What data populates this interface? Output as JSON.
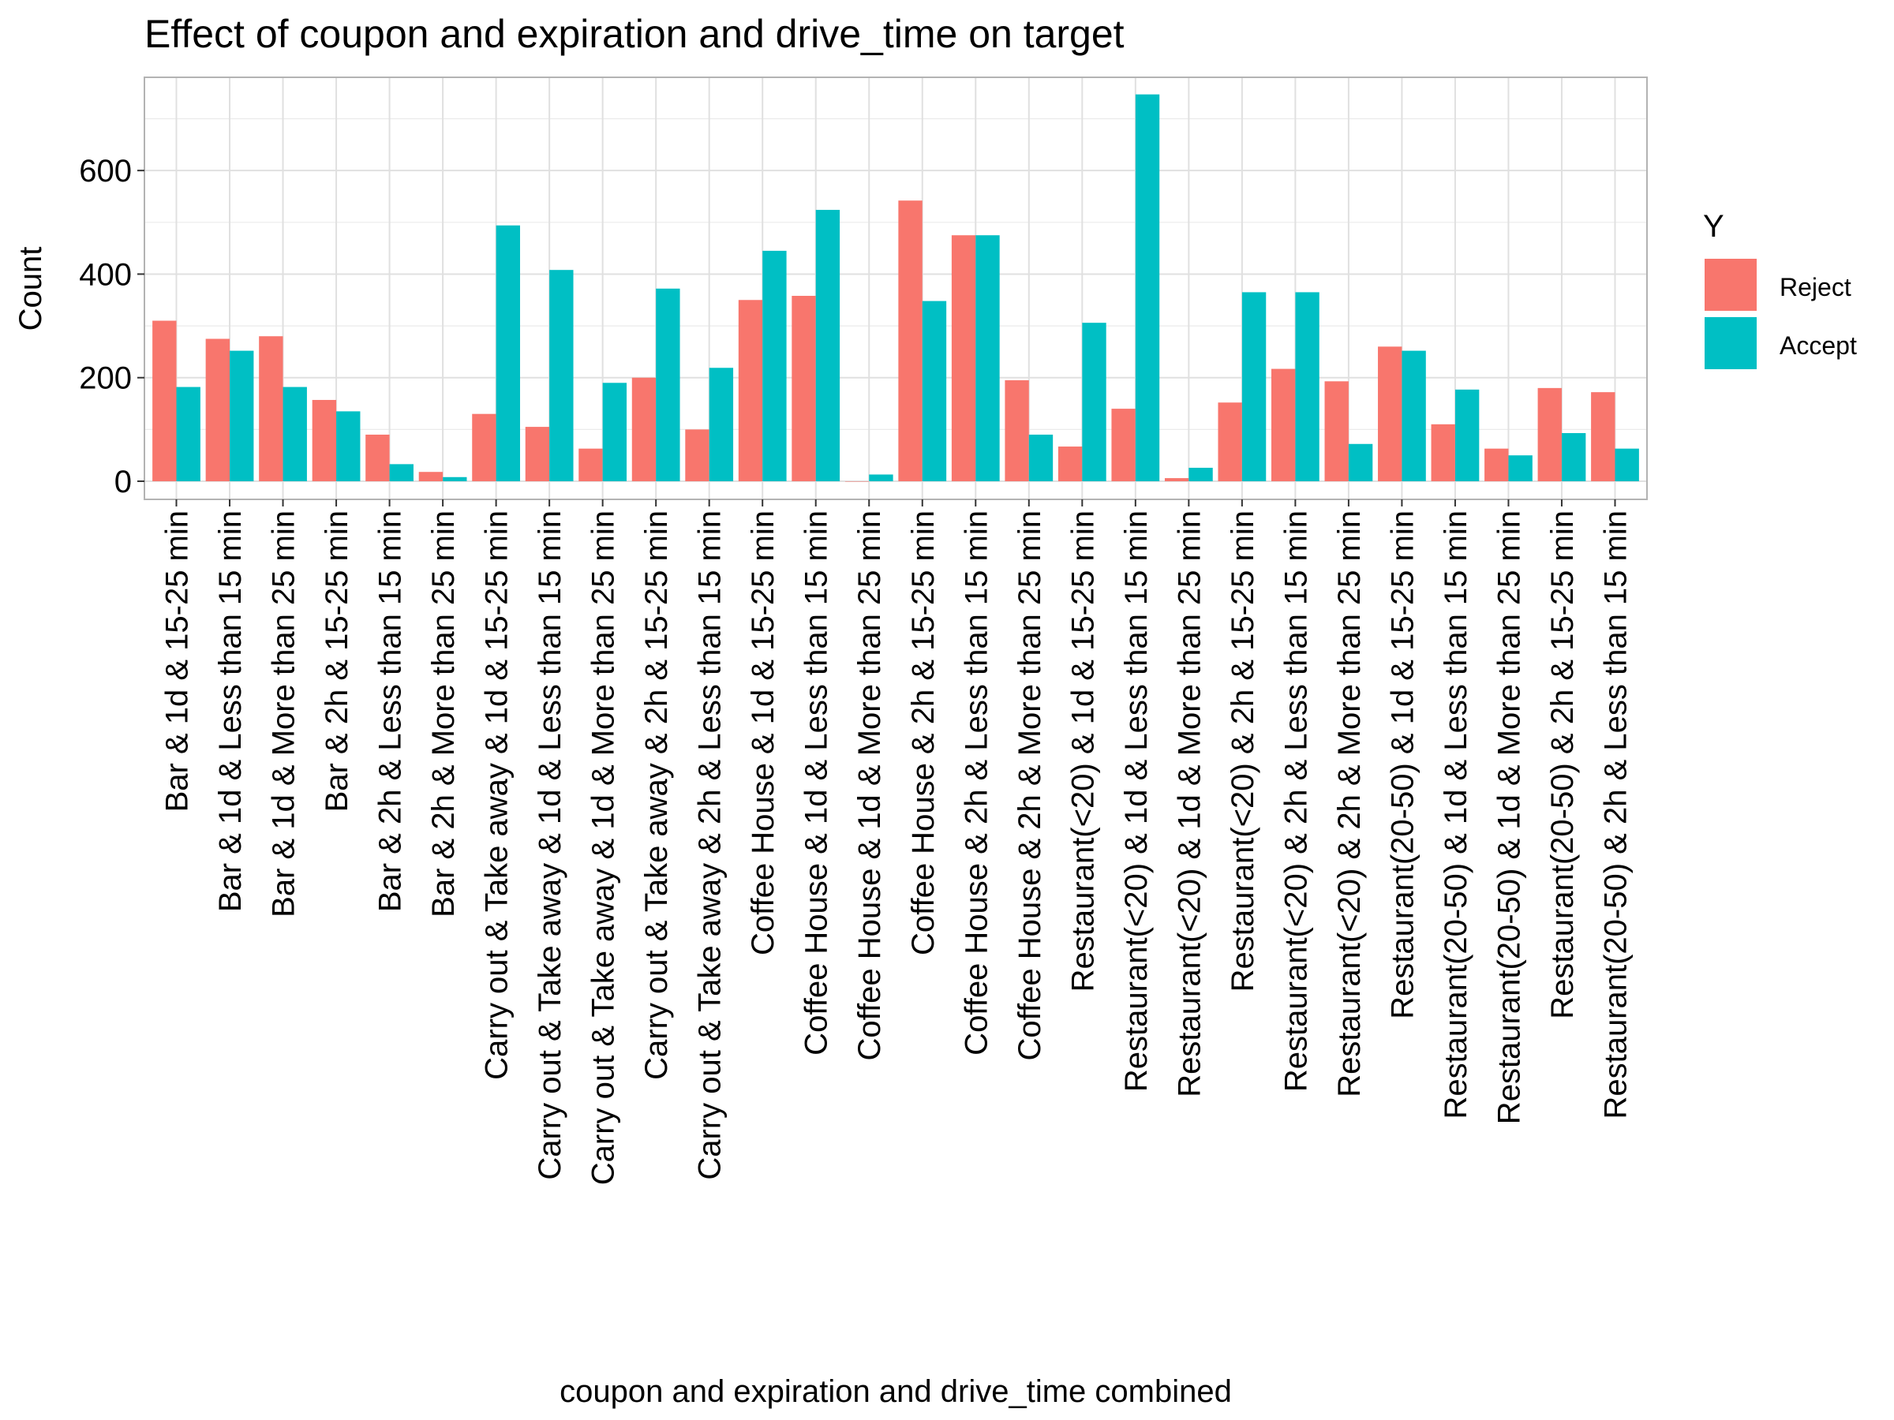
{
  "chart_data": {
    "type": "bar",
    "title": "Effect of coupon and expiration and drive_time on target",
    "xlabel": "coupon and expiration and drive_time combined",
    "ylabel": "Count",
    "ylim": [
      -35,
      780
    ],
    "yticks": [
      0,
      200,
      400,
      600
    ],
    "grid": true,
    "legend": {
      "title": "Y",
      "position": "right"
    },
    "categories": [
      "Bar & 1d & 15-25 min",
      "Bar & 1d & Less than 15 min",
      "Bar & 1d & More than 25 min",
      "Bar & 2h & 15-25 min",
      "Bar & 2h & Less than 15 min",
      "Bar & 2h & More than 25 min",
      "Carry out & Take away & 1d & 15-25 min",
      "Carry out & Take away & 1d & Less than 15 min",
      "Carry out & Take away & 1d & More than 25 min",
      "Carry out & Take away & 2h & 15-25 min",
      "Carry out & Take away & 2h & Less than 15 min",
      "Coffee House & 1d & 15-25 min",
      "Coffee House & 1d & Less than 15 min",
      "Coffee House & 1d & More than 25 min",
      "Coffee House & 2h & 15-25 min",
      "Coffee House & 2h & Less than 15 min",
      "Coffee House & 2h & More than 25 min",
      "Restaurant(<20) & 1d & 15-25 min",
      "Restaurant(<20) & 1d & Less than 15 min",
      "Restaurant(<20) & 1d & More than 25 min",
      "Restaurant(<20) & 2h & 15-25 min",
      "Restaurant(<20) & 2h & Less than 15 min",
      "Restaurant(<20) & 2h & More than 25 min",
      "Restaurant(20-50) & 1d & 15-25 min",
      "Restaurant(20-50) & 1d & Less than 15 min",
      "Restaurant(20-50) & 1d & More than 25 min",
      "Restaurant(20-50) & 2h & 15-25 min",
      "Restaurant(20-50) & 2h & Less than 15 min"
    ],
    "series": [
      {
        "name": "Reject",
        "color": "#F8766D",
        "values": [
          310,
          275,
          280,
          157,
          90,
          18,
          130,
          105,
          63,
          200,
          100,
          350,
          358,
          0,
          542,
          475,
          195,
          67,
          140,
          6,
          152,
          217,
          193,
          260,
          110,
          63,
          180,
          172
        ]
      },
      {
        "name": "Accept",
        "color": "#00BFC4",
        "values": [
          182,
          252,
          182,
          135,
          33,
          8,
          494,
          408,
          190,
          372,
          219,
          445,
          524,
          13,
          348,
          475,
          90,
          306,
          747,
          26,
          365,
          365,
          72,
          252,
          177,
          50,
          93,
          63
        ]
      }
    ]
  }
}
